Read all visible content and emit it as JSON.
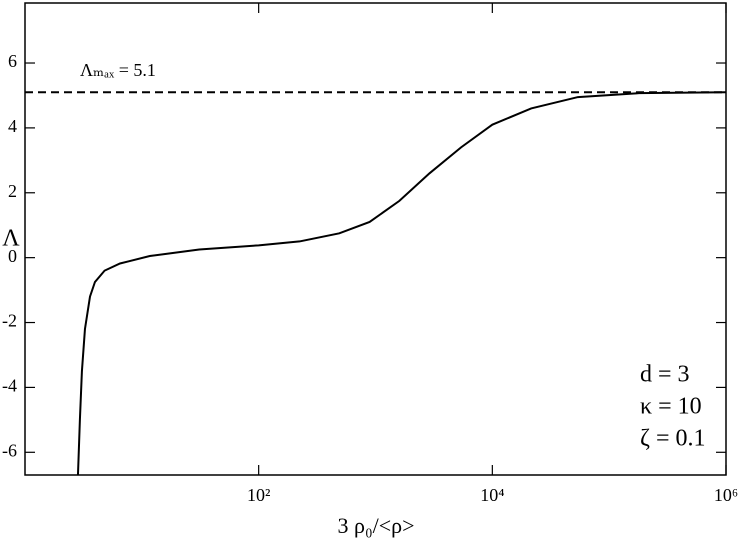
{
  "chart_data": {
    "type": "line",
    "xlabel": "3 ρ₀/<ρ>",
    "ylabel": "Λ",
    "xscale": "log",
    "xlim": [
      1,
      1000000
    ],
    "ylim": [
      -6.7,
      7.85
    ],
    "xticks": [
      {
        "value": 100,
        "label": "10²"
      },
      {
        "value": 10000,
        "label": "10⁴"
      },
      {
        "value": 1000000,
        "label": "10⁶"
      }
    ],
    "yticks": [
      -6,
      -4,
      -2,
      0,
      2,
      4,
      6
    ],
    "series": [
      {
        "color": "#000000",
        "x": [
          2.84,
          2.95,
          3.07,
          3.26,
          3.6,
          3.97,
          4.8,
          6.5,
          11.7,
          31,
          100,
          224,
          490,
          890,
          1600,
          2900,
          5400,
          10000,
          21500,
          54000,
          180000,
          1000000
        ],
        "values": [
          -6.7,
          -5,
          -3.5,
          -2.2,
          -1.2,
          -0.75,
          -0.4,
          -0.18,
          0.05,
          0.25,
          0.38,
          0.5,
          0.75,
          1.1,
          1.75,
          2.6,
          3.4,
          4.1,
          4.6,
          4.95,
          5.07,
          5.1
        ]
      }
    ],
    "hline": {
      "value": 5.1,
      "label": "Λₘₐₓ = 5.1",
      "style": "dashed"
    },
    "annotations": [
      "d = 3",
      "κ = 10",
      "ζ = 0.1"
    ]
  }
}
